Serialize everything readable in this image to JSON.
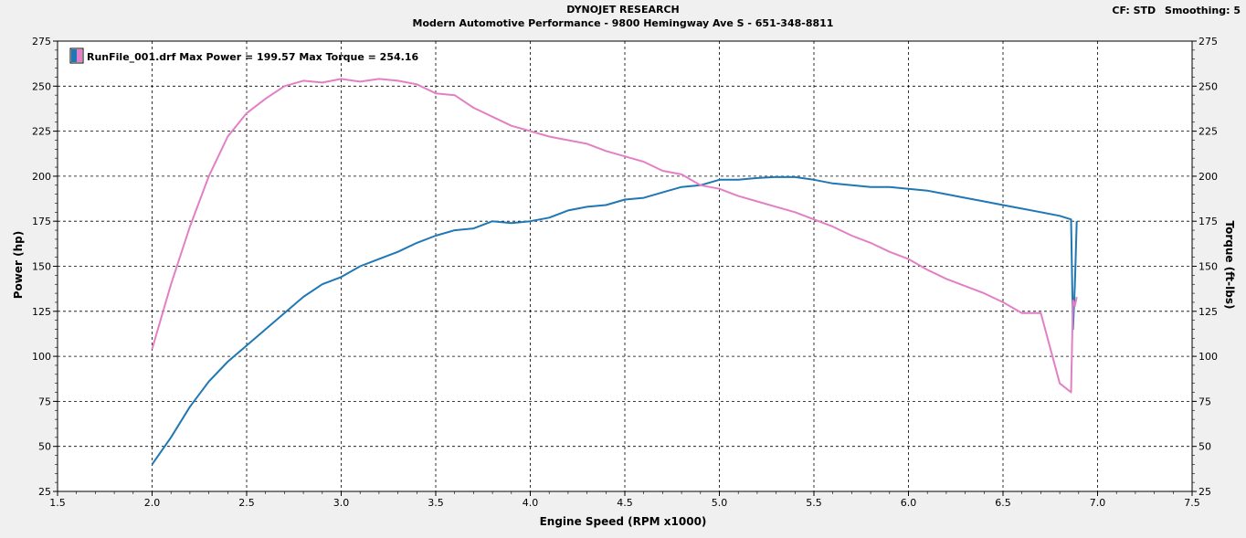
{
  "header": {
    "title": "DYNOJET RESEARCH",
    "subtitle": "Modern Automotive Performance - 9800 Hemingway Ave S - 651-348-8811",
    "cf_label": "CF: STD",
    "smoothing_label": "Smoothing: 5"
  },
  "colors": {
    "power": "#1f77b4",
    "torque": "#e37fc4",
    "grid": "#000000",
    "plot_bg": "#ffffff",
    "page_bg": "#f0f0f0"
  },
  "chart_data": {
    "type": "line",
    "title": "DYNOJET RESEARCH",
    "xlabel": "Engine Speed (RPM x1000)",
    "ylabel": "Power (hp)",
    "y2label": "Torque (ft-lbs)",
    "xlim": [
      1.5,
      7.5
    ],
    "ylim": [
      25,
      275
    ],
    "y2lim": [
      25,
      275
    ],
    "xticks": [
      "1.5",
      "2.0",
      "2.5",
      "3.0",
      "3.5",
      "4.0",
      "4.5",
      "5.0",
      "5.5",
      "6.0",
      "6.5",
      "7.0",
      "7.5"
    ],
    "yticks": [
      "25",
      "50",
      "75",
      "100",
      "125",
      "150",
      "175",
      "200",
      "225",
      "250",
      "275"
    ],
    "grid": true,
    "legend": {
      "placement": "top-left",
      "text": "RunFile_001.drf Max Power = 199.57 Max Torque = 254.16"
    },
    "series": [
      {
        "name": "Power",
        "axis": "left",
        "x": [
          2.0,
          2.1,
          2.2,
          2.3,
          2.4,
          2.5,
          2.6,
          2.7,
          2.8,
          2.9,
          3.0,
          3.1,
          3.2,
          3.3,
          3.4,
          3.5,
          3.6,
          3.7,
          3.8,
          3.9,
          4.0,
          4.1,
          4.2,
          4.3,
          4.4,
          4.5,
          4.6,
          4.7,
          4.8,
          4.9,
          5.0,
          5.1,
          5.2,
          5.3,
          5.4,
          5.5,
          5.6,
          5.7,
          5.8,
          5.9,
          6.0,
          6.1,
          6.2,
          6.3,
          6.4,
          6.5,
          6.6,
          6.7,
          6.8,
          6.86,
          6.87,
          6.88,
          6.89
        ],
        "values": [
          40,
          55,
          72,
          86,
          97,
          106,
          115,
          124,
          133,
          140,
          144,
          150,
          154,
          158,
          163,
          167,
          170,
          171,
          175,
          174,
          175,
          177,
          181,
          183,
          184,
          187,
          188,
          191,
          194,
          195,
          198,
          198,
          199,
          199.6,
          199.5,
          198,
          196,
          195,
          194,
          194,
          193,
          192,
          190,
          188,
          186,
          184,
          182,
          180,
          178,
          176,
          115,
          140,
          175
        ]
      },
      {
        "name": "Torque",
        "axis": "right",
        "x": [
          2.0,
          2.1,
          2.2,
          2.3,
          2.4,
          2.5,
          2.6,
          2.7,
          2.8,
          2.9,
          3.0,
          3.1,
          3.2,
          3.3,
          3.4,
          3.5,
          3.6,
          3.7,
          3.8,
          3.9,
          4.0,
          4.1,
          4.2,
          4.3,
          4.4,
          4.5,
          4.6,
          4.7,
          4.8,
          4.9,
          5.0,
          5.1,
          5.2,
          5.3,
          5.4,
          5.5,
          5.6,
          5.7,
          5.8,
          5.9,
          6.0,
          6.1,
          6.2,
          6.3,
          6.4,
          6.5,
          6.6,
          6.7,
          6.8,
          6.86,
          6.87,
          6.88,
          6.89
        ],
        "values": [
          104,
          140,
          172,
          200,
          222,
          235,
          243,
          250,
          253,
          252,
          254,
          252.5,
          254,
          253,
          251,
          246,
          245,
          238,
          233,
          228,
          225,
          222,
          220,
          218,
          214,
          211,
          208,
          203,
          201,
          195,
          193,
          189,
          186,
          183,
          180,
          176,
          172,
          167,
          163,
          158,
          154,
          148,
          143,
          139,
          135,
          130,
          124,
          124,
          85,
          80,
          131,
          128,
          133
        ]
      }
    ]
  }
}
